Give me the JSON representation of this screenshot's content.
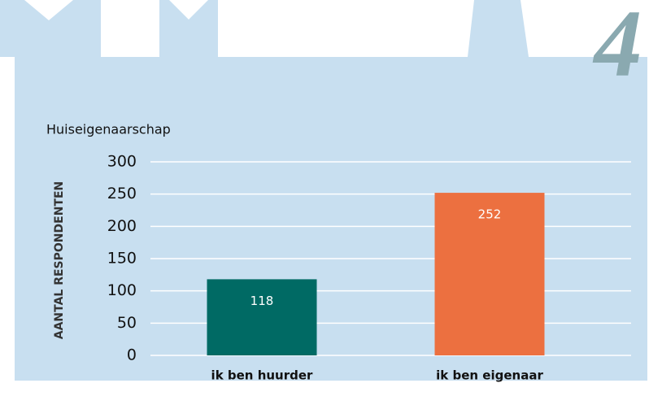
{
  "page_number": "4",
  "chart_data": {
    "type": "bar",
    "title": "Huiseigenaarschap",
    "y_label": "AANTAL RESPONDENTEN",
    "categories": [
      "ik ben huurder",
      "ik ben eigenaar"
    ],
    "values": [
      118,
      252
    ],
    "colors": [
      "#006a64",
      "#ec7040"
    ],
    "ylim": [
      0,
      300
    ],
    "yticks": [
      0,
      50,
      100,
      150,
      200,
      250,
      300
    ],
    "grid": true
  }
}
